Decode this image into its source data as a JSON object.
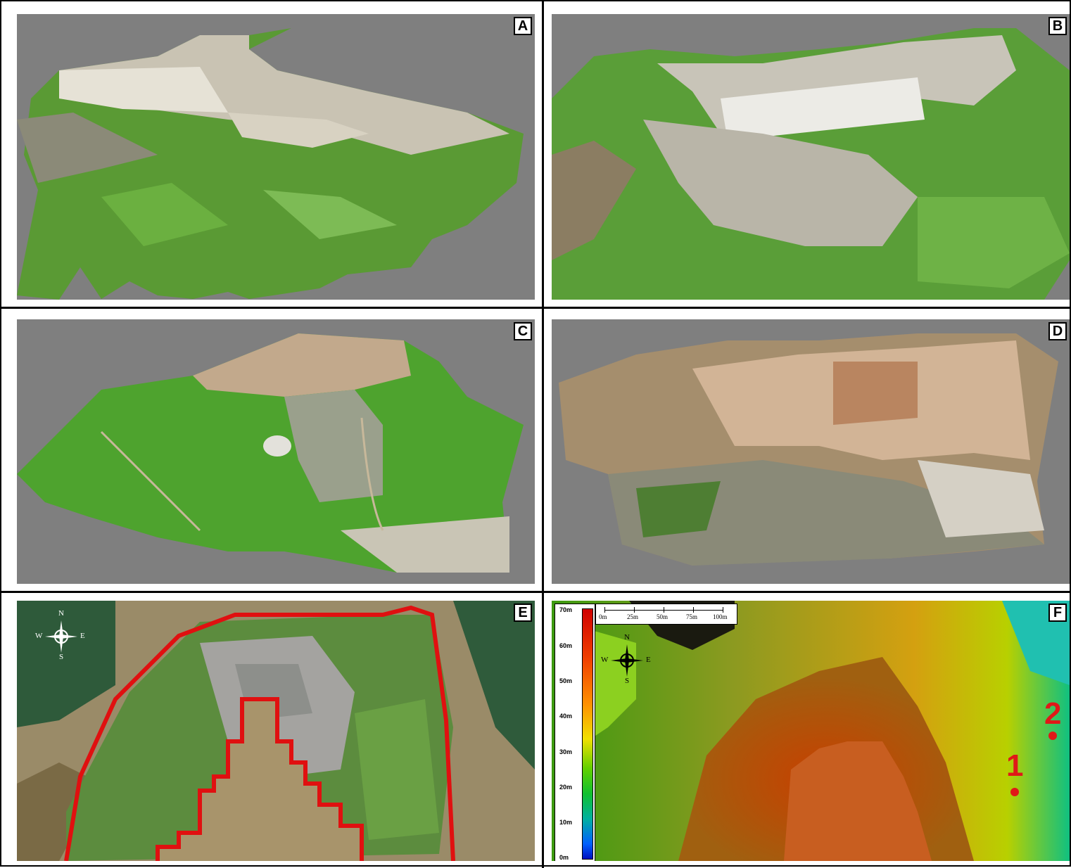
{
  "panels": [
    {
      "id": "A",
      "label": "A"
    },
    {
      "id": "B",
      "label": "B"
    },
    {
      "id": "C",
      "label": "C"
    },
    {
      "id": "D",
      "label": "D"
    },
    {
      "id": "E",
      "label": "E"
    },
    {
      "id": "F",
      "label": "F"
    }
  ],
  "compass": {
    "n": "N",
    "s": "S",
    "e": "E",
    "w": "W"
  },
  "colorbar": {
    "ticks": [
      "70m",
      "60m",
      "50m",
      "40m",
      "30m",
      "20m",
      "10m",
      "0m"
    ]
  },
  "scalebar": {
    "ticks": [
      "0m",
      "25m",
      "50m",
      "75m",
      "100m"
    ]
  },
  "points": [
    {
      "label": "1"
    },
    {
      "label": "2"
    }
  ],
  "colors": {
    "background": "#7f7f7f",
    "outline_red": "#e01010",
    "vegetation": "#4f9a2c",
    "rock": "#d8d4c8"
  }
}
